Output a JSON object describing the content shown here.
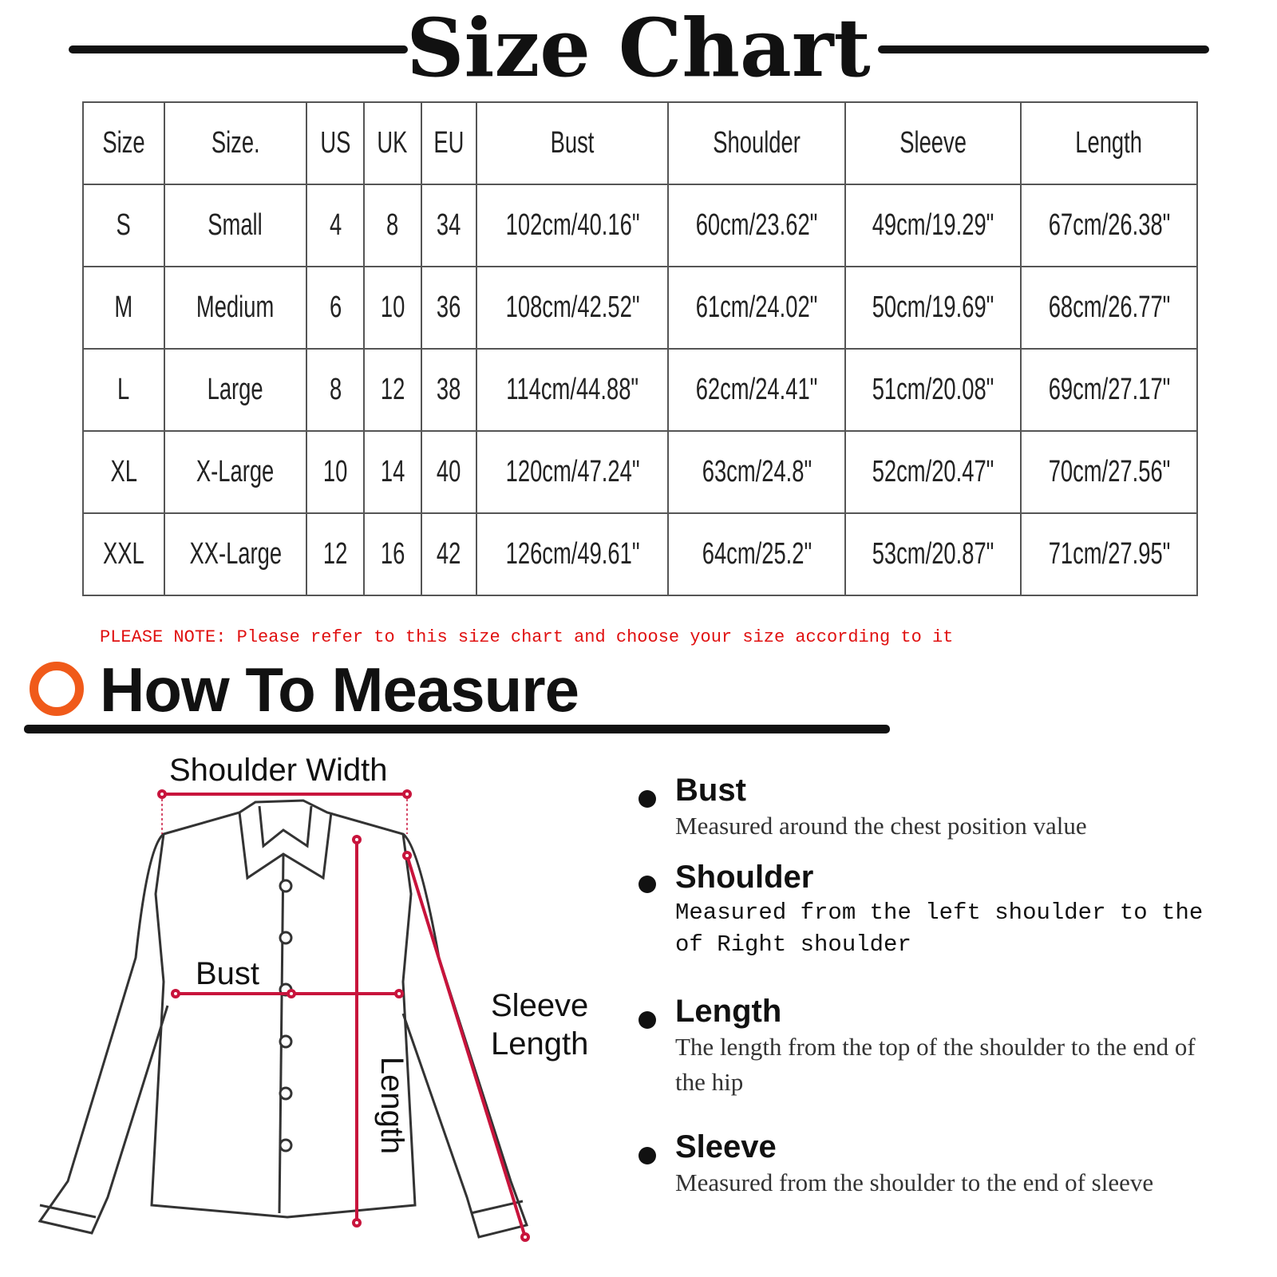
{
  "title": "Size Chart",
  "table": {
    "headers": [
      "Size",
      "Size.",
      "US",
      "UK",
      "EU",
      "Bust",
      "Shoulder",
      "Sleeve",
      "Length"
    ],
    "rows": [
      [
        "S",
        "Small",
        "4",
        "8",
        "34",
        "102cm/40.16\"",
        "60cm/23.62\"",
        "49cm/19.29\"",
        "67cm/26.38\""
      ],
      [
        "M",
        "Medium",
        "6",
        "10",
        "36",
        "108cm/42.52\"",
        "61cm/24.02\"",
        "50cm/19.69\"",
        "68cm/26.77\""
      ],
      [
        "L",
        "Large",
        "8",
        "12",
        "38",
        "114cm/44.88\"",
        "62cm/24.41\"",
        "51cm/20.08\"",
        "69cm/27.17\""
      ],
      [
        "XL",
        "X-Large",
        "10",
        "14",
        "40",
        "120cm/47.24\"",
        "63cm/24.8\"",
        "52cm/20.47\"",
        "70cm/27.56\""
      ],
      [
        "XXL",
        "XX-Large",
        "12",
        "16",
        "42",
        "126cm/49.61\"",
        "64cm/25.2\"",
        "53cm/20.87\"",
        "71cm/27.95\""
      ]
    ]
  },
  "note": "PLEASE NOTE: Please refer to this size chart and choose your size according to it",
  "how_to_measure": "How To Measure",
  "diagram": {
    "shoulder_width": "Shoulder Width",
    "bust": "Bust",
    "length": "Length",
    "sleeve_line1": "Sleeve",
    "sleeve_line2": "Length"
  },
  "items": [
    {
      "title": "Bust",
      "desc": "Measured around the chest position value"
    },
    {
      "title": "Shoulder",
      "desc": "Measured from the left shoulder to the of Right shoulder"
    },
    {
      "title": "Length",
      "desc": "The length from the top of the shoulder to the end of the hip"
    },
    {
      "title": "Sleeve",
      "desc": "Measured from the shoulder to the end of sleeve"
    }
  ],
  "colors": {
    "accent": "#f05a1a",
    "note": "#e01010",
    "measure_line": "#c8143c"
  }
}
